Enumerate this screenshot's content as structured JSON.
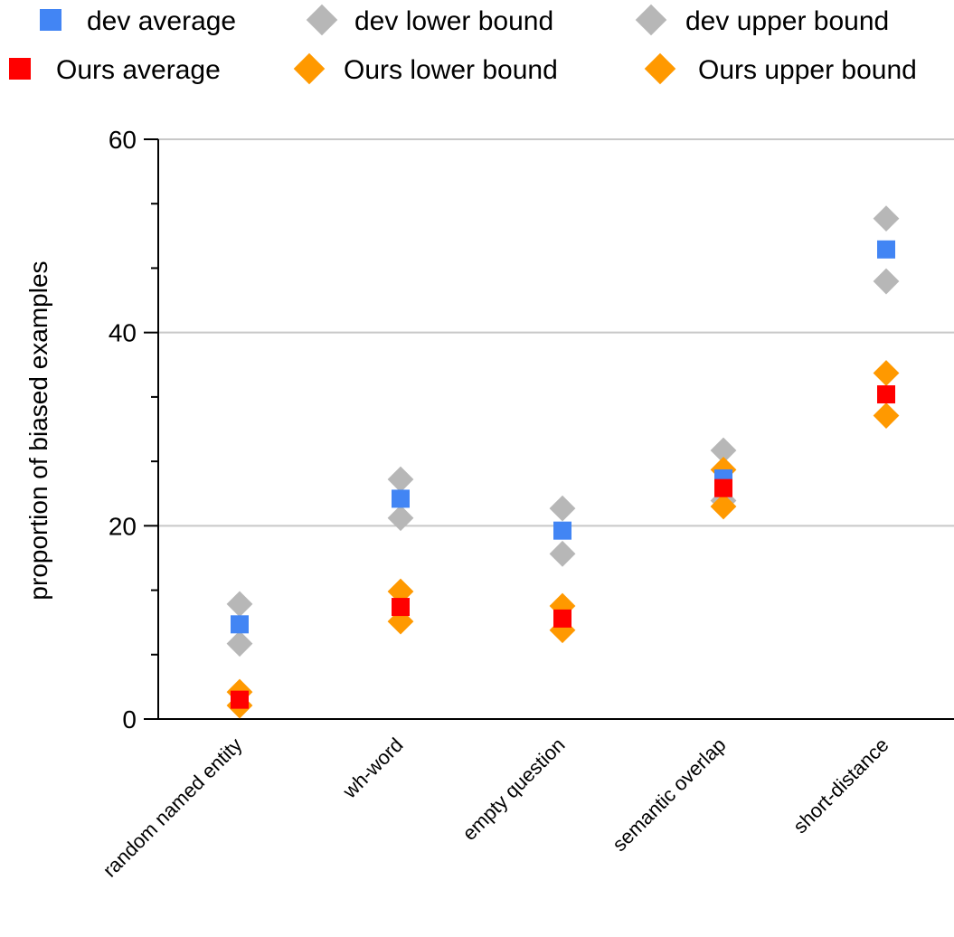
{
  "chart_data": {
    "type": "scatter",
    "ylabel": "proportion of biased examples",
    "ylim": [
      0,
      60
    ],
    "yticks": [
      0,
      20,
      40,
      60
    ],
    "grid": true,
    "legend_position": "top",
    "categories": [
      "random named entity",
      "wh-word",
      "empty question",
      "semantic overlap",
      "short-distance"
    ],
    "series": [
      {
        "name": "dev average",
        "marker": "square",
        "color": "#4285f4",
        "values": [
          9.8,
          22.8,
          19.5,
          24.9,
          48.6
        ]
      },
      {
        "name": "dev lower bound",
        "marker": "diamond",
        "color": "#b7b7b7",
        "values": [
          7.8,
          20.8,
          17.1,
          22.6,
          45.3
        ]
      },
      {
        "name": "dev upper bound",
        "marker": "diamond",
        "color": "#b7b7b7",
        "values": [
          11.9,
          24.8,
          21.8,
          27.8,
          51.8
        ]
      },
      {
        "name": "Ours average",
        "marker": "square",
        "color": "#ff0000",
        "values": [
          2.0,
          11.6,
          10.4,
          23.9,
          33.6
        ]
      },
      {
        "name": "Ours lower bound",
        "marker": "diamond",
        "color": "#ff9900",
        "values": [
          1.4,
          10.1,
          9.2,
          22.0,
          31.4
        ]
      },
      {
        "name": "Ours upper bound",
        "marker": "diamond",
        "color": "#ff9900",
        "values": [
          2.8,
          13.2,
          11.7,
          25.8,
          35.8
        ]
      }
    ]
  }
}
